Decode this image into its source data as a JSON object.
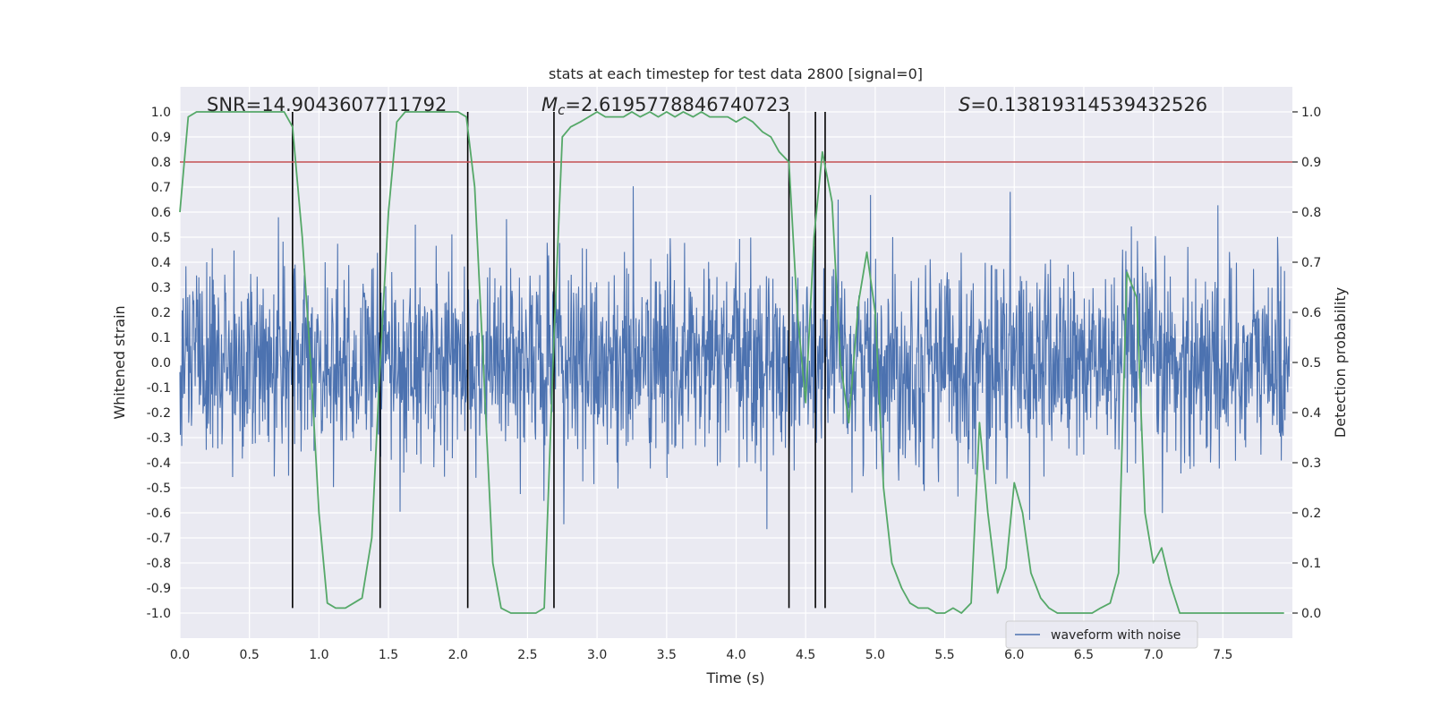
{
  "chart_data": {
    "type": "line",
    "title": "stats at each timestep for test data 2800 [signal=0]",
    "xlabel": "Time (s)",
    "ylabel_left": "Whitened strain",
    "ylabel_right": "Detection probability",
    "xlim": [
      0.0,
      8.0
    ],
    "ylim_left": [
      -1.1,
      1.1
    ],
    "ylim_right": [
      -0.05,
      1.05
    ],
    "x_ticks": [
      "0.0",
      "0.5",
      "1.0",
      "1.5",
      "2.0",
      "2.5",
      "3.0",
      "3.5",
      "4.0",
      "4.5",
      "5.0",
      "5.5",
      "6.0",
      "6.5",
      "7.0",
      "7.5"
    ],
    "y_left_ticks": [
      "1.0",
      "0.9",
      "0.8",
      "0.7",
      "0.6",
      "0.5",
      "0.4",
      "0.3",
      "0.2",
      "0.1",
      "0.0",
      "-0.1",
      "-0.2",
      "-0.3",
      "-0.4",
      "-0.5",
      "-0.6",
      "-0.7",
      "-0.8",
      "-0.9",
      "-1.0"
    ],
    "y_right_ticks": [
      "1.0",
      "0.9",
      "0.8",
      "0.7",
      "0.6",
      "0.5",
      "0.4",
      "0.3",
      "0.2",
      "0.1",
      "0.0"
    ],
    "annotations": {
      "snr": "SNR=14.9043607711792",
      "mc_symbol": "M",
      "mc_sub": "c",
      "mc_value": "=2.6195778846740723",
      "s_symbol": "S",
      "s_value": "=0.13819314539432526"
    },
    "threshold_line": {
      "y_right": 0.9,
      "color": "#c44e52"
    },
    "vertical_lines_x": [
      0.81,
      1.44,
      2.07,
      2.69,
      4.38,
      4.57,
      4.64
    ],
    "series": [
      {
        "name": "waveform with noise",
        "axis": "left",
        "color": "#4c72b0",
        "description_range": [
          -0.98,
          0.98
        ]
      },
      {
        "name": "detection probability",
        "axis": "right",
        "color": "#55a868",
        "x": [
          0.0,
          0.06,
          0.12,
          0.19,
          0.25,
          0.31,
          0.38,
          0.44,
          0.5,
          0.56,
          0.62,
          0.69,
          0.75,
          0.81,
          0.88,
          0.94,
          1.0,
          1.06,
          1.12,
          1.19,
          1.25,
          1.31,
          1.38,
          1.44,
          1.5,
          1.56,
          1.62,
          1.69,
          1.75,
          1.81,
          1.88,
          1.94,
          2.0,
          2.06,
          2.12,
          2.19,
          2.25,
          2.31,
          2.38,
          2.44,
          2.5,
          2.56,
          2.62,
          2.69,
          2.75,
          2.81,
          2.88,
          2.94,
          3.0,
          3.06,
          3.12,
          3.19,
          3.25,
          3.31,
          3.38,
          3.44,
          3.5,
          3.56,
          3.62,
          3.69,
          3.75,
          3.81,
          3.88,
          3.94,
          4.0,
          4.06,
          4.12,
          4.19,
          4.25,
          4.31,
          4.38,
          4.44,
          4.5,
          4.56,
          4.62,
          4.69,
          4.75,
          4.81,
          4.88,
          4.94,
          5.0,
          5.06,
          5.12,
          5.19,
          5.25,
          5.31,
          5.38,
          5.44,
          5.5,
          5.56,
          5.62,
          5.69,
          5.75,
          5.81,
          5.88,
          5.94,
          6.0,
          6.06,
          6.12,
          6.19,
          6.25,
          6.31,
          6.38,
          6.44,
          6.5,
          6.56,
          6.62,
          6.69,
          6.75,
          6.81,
          6.88,
          6.94,
          7.0,
          7.06,
          7.12,
          7.19,
          7.25,
          7.31,
          7.38,
          7.44,
          7.5,
          7.56,
          7.62,
          7.69,
          7.75,
          7.81,
          7.88,
          7.94
        ],
        "values": [
          0.8,
          0.99,
          1.0,
          1.0,
          1.0,
          1.0,
          1.0,
          1.0,
          1.0,
          1.0,
          1.0,
          1.0,
          1.0,
          0.97,
          0.75,
          0.5,
          0.2,
          0.02,
          0.01,
          0.01,
          0.02,
          0.03,
          0.15,
          0.5,
          0.8,
          0.98,
          1.0,
          1.0,
          1.0,
          1.0,
          1.0,
          1.0,
          1.0,
          0.99,
          0.85,
          0.45,
          0.1,
          0.01,
          0.0,
          0.0,
          0.0,
          0.0,
          0.01,
          0.55,
          0.95,
          0.97,
          0.98,
          0.99,
          1.0,
          0.99,
          0.99,
          0.99,
          1.0,
          0.99,
          1.0,
          0.99,
          1.0,
          0.99,
          1.0,
          0.99,
          1.0,
          0.99,
          0.99,
          0.99,
          0.98,
          0.99,
          0.98,
          0.96,
          0.95,
          0.92,
          0.9,
          0.6,
          0.42,
          0.75,
          0.92,
          0.82,
          0.5,
          0.38,
          0.62,
          0.72,
          0.6,
          0.25,
          0.1,
          0.05,
          0.02,
          0.01,
          0.01,
          0.0,
          0.0,
          0.01,
          0.0,
          0.02,
          0.38,
          0.2,
          0.04,
          0.09,
          0.26,
          0.2,
          0.08,
          0.03,
          0.01,
          0.0,
          0.0,
          0.0,
          0.0,
          0.0,
          0.01,
          0.02,
          0.08,
          0.68,
          0.63,
          0.2,
          0.1,
          0.13,
          0.06,
          0.0,
          0.0,
          0.0,
          0.0,
          0.0,
          0.0,
          0.0,
          0.0,
          0.0,
          0.0,
          0.0,
          0.0,
          0.0
        ]
      }
    ],
    "legend": {
      "label": "waveform with noise",
      "position": "lower-right"
    }
  }
}
